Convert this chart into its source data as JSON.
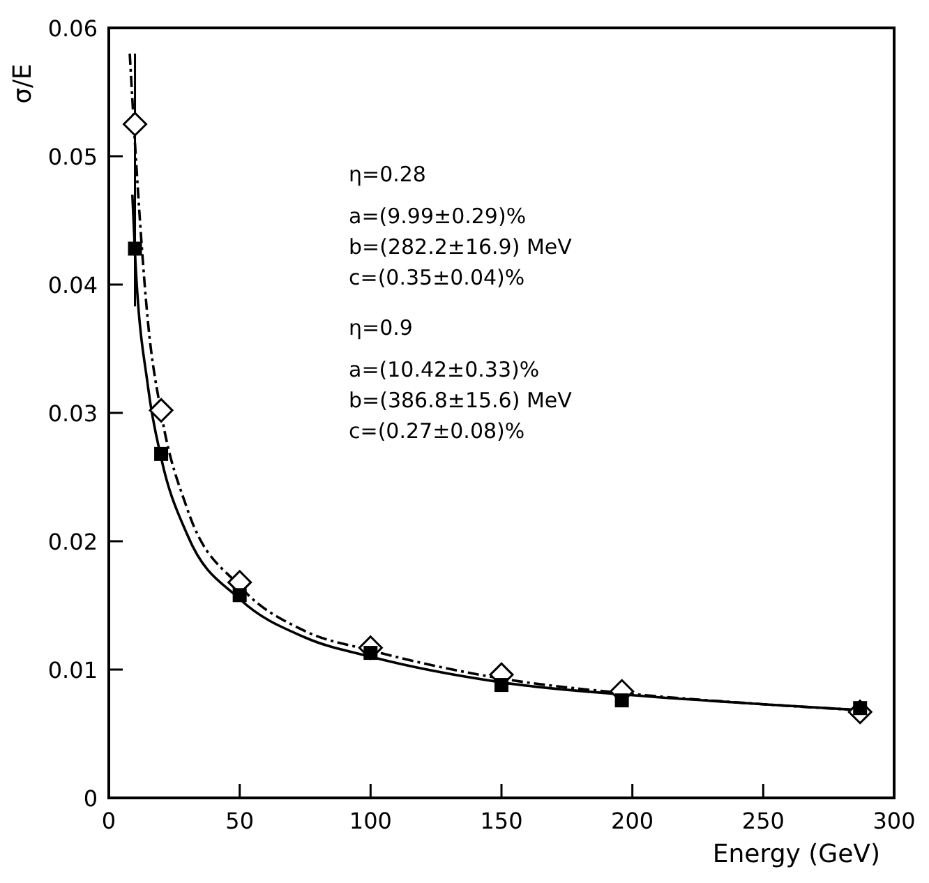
{
  "chart_data": {
    "type": "scatter",
    "ylabel": "σ/E",
    "xlabel": "Energy (GeV)",
    "xlim": [
      0,
      300
    ],
    "xticks": [
      0,
      50,
      100,
      150,
      200,
      250,
      300
    ],
    "ylim": [
      0,
      0.06
    ],
    "yticks": [
      0,
      0.01,
      0.02,
      0.03,
      0.04,
      0.05,
      0.06
    ],
    "grid": false,
    "series": [
      {
        "color": "#000000",
        "marker": "square",
        "x": [
          10,
          20,
          50,
          100,
          150,
          196,
          287
        ],
        "values": [
          0.0428,
          0.0268,
          0.0158,
          0.0113,
          0.0088,
          0.0076,
          0.007
        ],
        "errors": [
          0.0045,
          null,
          null,
          null,
          null,
          null,
          null
        ]
      },
      {
        "color": "#000000",
        "marker": "diamond",
        "x": [
          10,
          20,
          50,
          100,
          150,
          196,
          287
        ],
        "values": [
          0.0525,
          0.0302,
          0.0168,
          0.0117,
          0.0096,
          0.0083,
          0.0067
        ],
        "errors": [
          0.0055,
          null,
          null,
          null,
          null,
          null,
          null
        ]
      },
      {
        "type": "line",
        "color": "#000000",
        "line_style": "solid",
        "x": [
          9,
          10,
          15,
          20,
          30,
          50,
          75,
          100,
          150,
          200,
          250,
          290
        ],
        "values": [
          0.047,
          0.0425,
          0.032,
          0.0265,
          0.0205,
          0.0155,
          0.0125,
          0.011,
          0.009,
          0.008,
          0.0073,
          0.0068
        ]
      },
      {
        "type": "line",
        "color": "#000000",
        "line_style": "dashed",
        "x": [
          8,
          10,
          15,
          20,
          30,
          50,
          75,
          100,
          150,
          200,
          250,
          290
        ],
        "values": [
          0.058,
          0.051,
          0.037,
          0.03,
          0.0225,
          0.0165,
          0.013,
          0.0115,
          0.0093,
          0.0081,
          0.0073,
          0.0068
        ]
      }
    ],
    "annotations": [
      "η=0.28",
      "a=(9.99±0.29)%",
      "b=(282.2±16.9) MeV",
      "c=(0.35±0.04)%",
      "η=0.9",
      "a=(10.42±0.33)%",
      "b=(386.8±15.6) MeV",
      "c=(0.27±0.08)%"
    ]
  }
}
